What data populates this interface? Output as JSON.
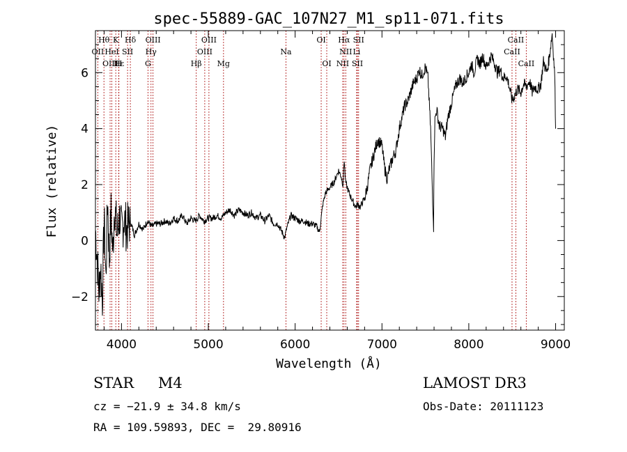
{
  "chart_data": {
    "type": "line",
    "title": "spec-55889-GAC_107N27_M1_sp11-071.fits",
    "xlabel": "Wavelength (Å)",
    "ylabel": "Flux (relative)",
    "xlim": [
      3700,
      9100
    ],
    "ylim": [
      -3.2,
      7.5
    ],
    "x_ticks": [
      4000,
      5000,
      6000,
      7000,
      8000,
      9000
    ],
    "y_ticks": [
      -2,
      0,
      2,
      4,
      6
    ],
    "grid": false,
    "series": [
      {
        "name": "spectrum",
        "x": [
          3700,
          3720,
          3740,
          3760,
          3780,
          3800,
          3820,
          3840,
          3860,
          3880,
          3900,
          3920,
          3950,
          3980,
          4000,
          4030,
          4060,
          4100,
          4150,
          4200,
          4250,
          4300,
          4350,
          4400,
          4450,
          4500,
          4550,
          4600,
          4650,
          4700,
          4750,
          4800,
          4850,
          4900,
          4950,
          5000,
          5050,
          5100,
          5150,
          5200,
          5250,
          5300,
          5350,
          5400,
          5450,
          5500,
          5550,
          5600,
          5650,
          5700,
          5750,
          5800,
          5850,
          5880,
          5900,
          5920,
          5950,
          6000,
          6050,
          6100,
          6150,
          6200,
          6250,
          6280,
          6300,
          6320,
          6350,
          6400,
          6450,
          6500,
          6530,
          6550,
          6565,
          6580,
          6600,
          6620,
          6650,
          6680,
          6700,
          6720,
          6750,
          6780,
          6800,
          6830,
          6860,
          6900,
          6950,
          7000,
          7030,
          7060,
          7080,
          7100,
          7130,
          7160,
          7200,
          7230,
          7260,
          7300,
          7330,
          7360,
          7400,
          7430,
          7460,
          7500,
          7530,
          7560,
          7580,
          7595,
          7600,
          7610,
          7630,
          7660,
          7700,
          7730,
          7760,
          7800,
          7830,
          7860,
          7900,
          7930,
          7960,
          8000,
          8030,
          8060,
          8100,
          8130,
          8160,
          8200,
          8230,
          8260,
          8300,
          8330,
          8360,
          8400,
          8430,
          8460,
          8500,
          8530,
          8560,
          8600,
          8630,
          8660,
          8700,
          8730,
          8760,
          8800,
          8830,
          8860,
          8900,
          8930,
          8960,
          8990,
          9000
        ],
        "values": [
          0.4,
          -0.6,
          -1.8,
          -0.9,
          -2.1,
          0.8,
          -1.4,
          1.6,
          -0.7,
          1.0,
          -0.5,
          1.3,
          0.2,
          0.9,
          0.3,
          0.8,
          0.4,
          0.7,
          0.2,
          0.6,
          0.4,
          0.7,
          0.5,
          0.6,
          0.6,
          0.7,
          0.6,
          0.8,
          0.7,
          0.9,
          0.6,
          0.8,
          0.7,
          0.9,
          0.7,
          0.8,
          0.8,
          0.9,
          0.8,
          1.0,
          1.1,
          0.9,
          1.1,
          1.0,
          0.9,
          1.0,
          0.8,
          0.9,
          0.7,
          0.9,
          0.6,
          0.6,
          0.3,
          0.1,
          0.4,
          0.6,
          0.9,
          0.8,
          0.7,
          0.7,
          0.6,
          0.6,
          0.5,
          0.3,
          0.8,
          1.3,
          1.7,
          1.9,
          2.1,
          2.5,
          2.3,
          2.0,
          2.9,
          2.1,
          1.9,
          1.7,
          1.5,
          1.3,
          1.2,
          1.3,
          1.2,
          1.4,
          1.5,
          1.9,
          2.5,
          3.0,
          3.6,
          3.4,
          2.6,
          2.2,
          2.5,
          2.7,
          3.0,
          3.2,
          4.0,
          4.4,
          4.8,
          5.0,
          5.3,
          5.6,
          5.8,
          6.1,
          5.9,
          6.2,
          5.8,
          4.0,
          1.8,
          0.5,
          3.0,
          4.3,
          4.7,
          4.1,
          4.0,
          3.7,
          4.4,
          4.9,
          5.3,
          5.6,
          5.8,
          5.6,
          5.8,
          6.0,
          6.3,
          6.0,
          6.5,
          6.3,
          6.6,
          6.2,
          6.4,
          6.6,
          6.3,
          6.0,
          6.1,
          5.8,
          5.9,
          5.6,
          5.0,
          5.2,
          5.4,
          5.3,
          5.6,
          5.5,
          5.7,
          5.3,
          5.5,
          5.4,
          5.6,
          6.4,
          6.0,
          6.6,
          7.4,
          5.9,
          4.0
        ]
      }
    ],
    "lines": [
      {
        "name": "Hθ",
        "x": 3798
      },
      {
        "name": "OII",
        "x": 3727
      },
      {
        "name": "OIII",
        "x": 3869
      },
      {
        "name": "K",
        "x": 3934
      },
      {
        "name": "H",
        "x": 3968
      },
      {
        "name": "Hε",
        "x": 3970
      },
      {
        "name": "HeI",
        "x": 3889
      },
      {
        "name": "SII",
        "x": 4070
      },
      {
        "name": "Hδ",
        "x": 4102
      },
      {
        "name": "Hγ",
        "x": 4340
      },
      {
        "name": "G",
        "x": 4305
      },
      {
        "name": "OIII",
        "x": 4363
      },
      {
        "name": "Hβ",
        "x": 4861
      },
      {
        "name": "OIII",
        "x": 4959
      },
      {
        "name": "OIII",
        "x": 5007
      },
      {
        "name": "Mg",
        "x": 5175
      },
      {
        "name": "Na",
        "x": 5894
      },
      {
        "name": "OI",
        "x": 6300
      },
      {
        "name": "OI",
        "x": 6364
      },
      {
        "name": "Hα",
        "x": 6563
      },
      {
        "name": "NII",
        "x": 6548
      },
      {
        "name": "NII",
        "x": 6583
      },
      {
        "name": "Li",
        "x": 6708
      },
      {
        "name": "SII",
        "x": 6717
      },
      {
        "name": "SII",
        "x": 6731
      },
      {
        "name": "CaII",
        "x": 8498
      },
      {
        "name": "CaII",
        "x": 8542
      },
      {
        "name": "CaII",
        "x": 8662
      }
    ],
    "line_labels": [
      {
        "text": "Hθ",
        "x": 3798,
        "row": 0
      },
      {
        "text": "K",
        "x": 3934,
        "row": 0
      },
      {
        "text": "Hδ",
        "x": 4102,
        "row": 0
      },
      {
        "text": "OIII",
        "x": 4363,
        "row": 0
      },
      {
        "text": "OIII",
        "x": 5007,
        "row": 0
      },
      {
        "text": "OI",
        "x": 6300,
        "row": 0
      },
      {
        "text": "Hα",
        "x": 6563,
        "row": 0
      },
      {
        "text": "SII",
        "x": 6731,
        "row": 0
      },
      {
        "text": "CaII",
        "x": 8542,
        "row": 0
      },
      {
        "text": "OII",
        "x": 3727,
        "row": 1
      },
      {
        "text": "HeI",
        "x": 3889,
        "row": 1
      },
      {
        "text": "SII",
        "x": 4070,
        "row": 1
      },
      {
        "text": "Hγ",
        "x": 4340,
        "row": 1
      },
      {
        "text": "OIII",
        "x": 4959,
        "row": 1
      },
      {
        "text": "Na",
        "x": 5894,
        "row": 1
      },
      {
        "text": "NII",
        "x": 6583,
        "row": 1
      },
      {
        "text": "Li",
        "x": 6708,
        "row": 1
      },
      {
        "text": "CaII",
        "x": 8498,
        "row": 1
      },
      {
        "text": "OIII",
        "x": 3869,
        "row": 2
      },
      {
        "text": "Hε",
        "x": 3970,
        "row": 2
      },
      {
        "text": "H",
        "x": 3968,
        "row": 2
      },
      {
        "text": "G",
        "x": 4305,
        "row": 2
      },
      {
        "text": "Hβ",
        "x": 4861,
        "row": 2
      },
      {
        "text": "Mg",
        "x": 5175,
        "row": 2
      },
      {
        "text": "OI",
        "x": 6364,
        "row": 2
      },
      {
        "text": "NII",
        "x": 6548,
        "row": 2
      },
      {
        "text": "SII",
        "x": 6717,
        "row": 2
      },
      {
        "text": "CaII",
        "x": 8662,
        "row": 2
      }
    ]
  },
  "info": {
    "object_class": "STAR",
    "subclass": "M4",
    "survey": "LAMOST DR3",
    "cz": "cz = −21.9 ± 34.8 km/s",
    "obs_date": "Obs-Date: 20111123",
    "coords": "RA = 109.59893, DEC =  29.80916"
  },
  "colors": {
    "line_marker": "#b22222",
    "spectrum": "#000000",
    "axis": "#000000"
  }
}
